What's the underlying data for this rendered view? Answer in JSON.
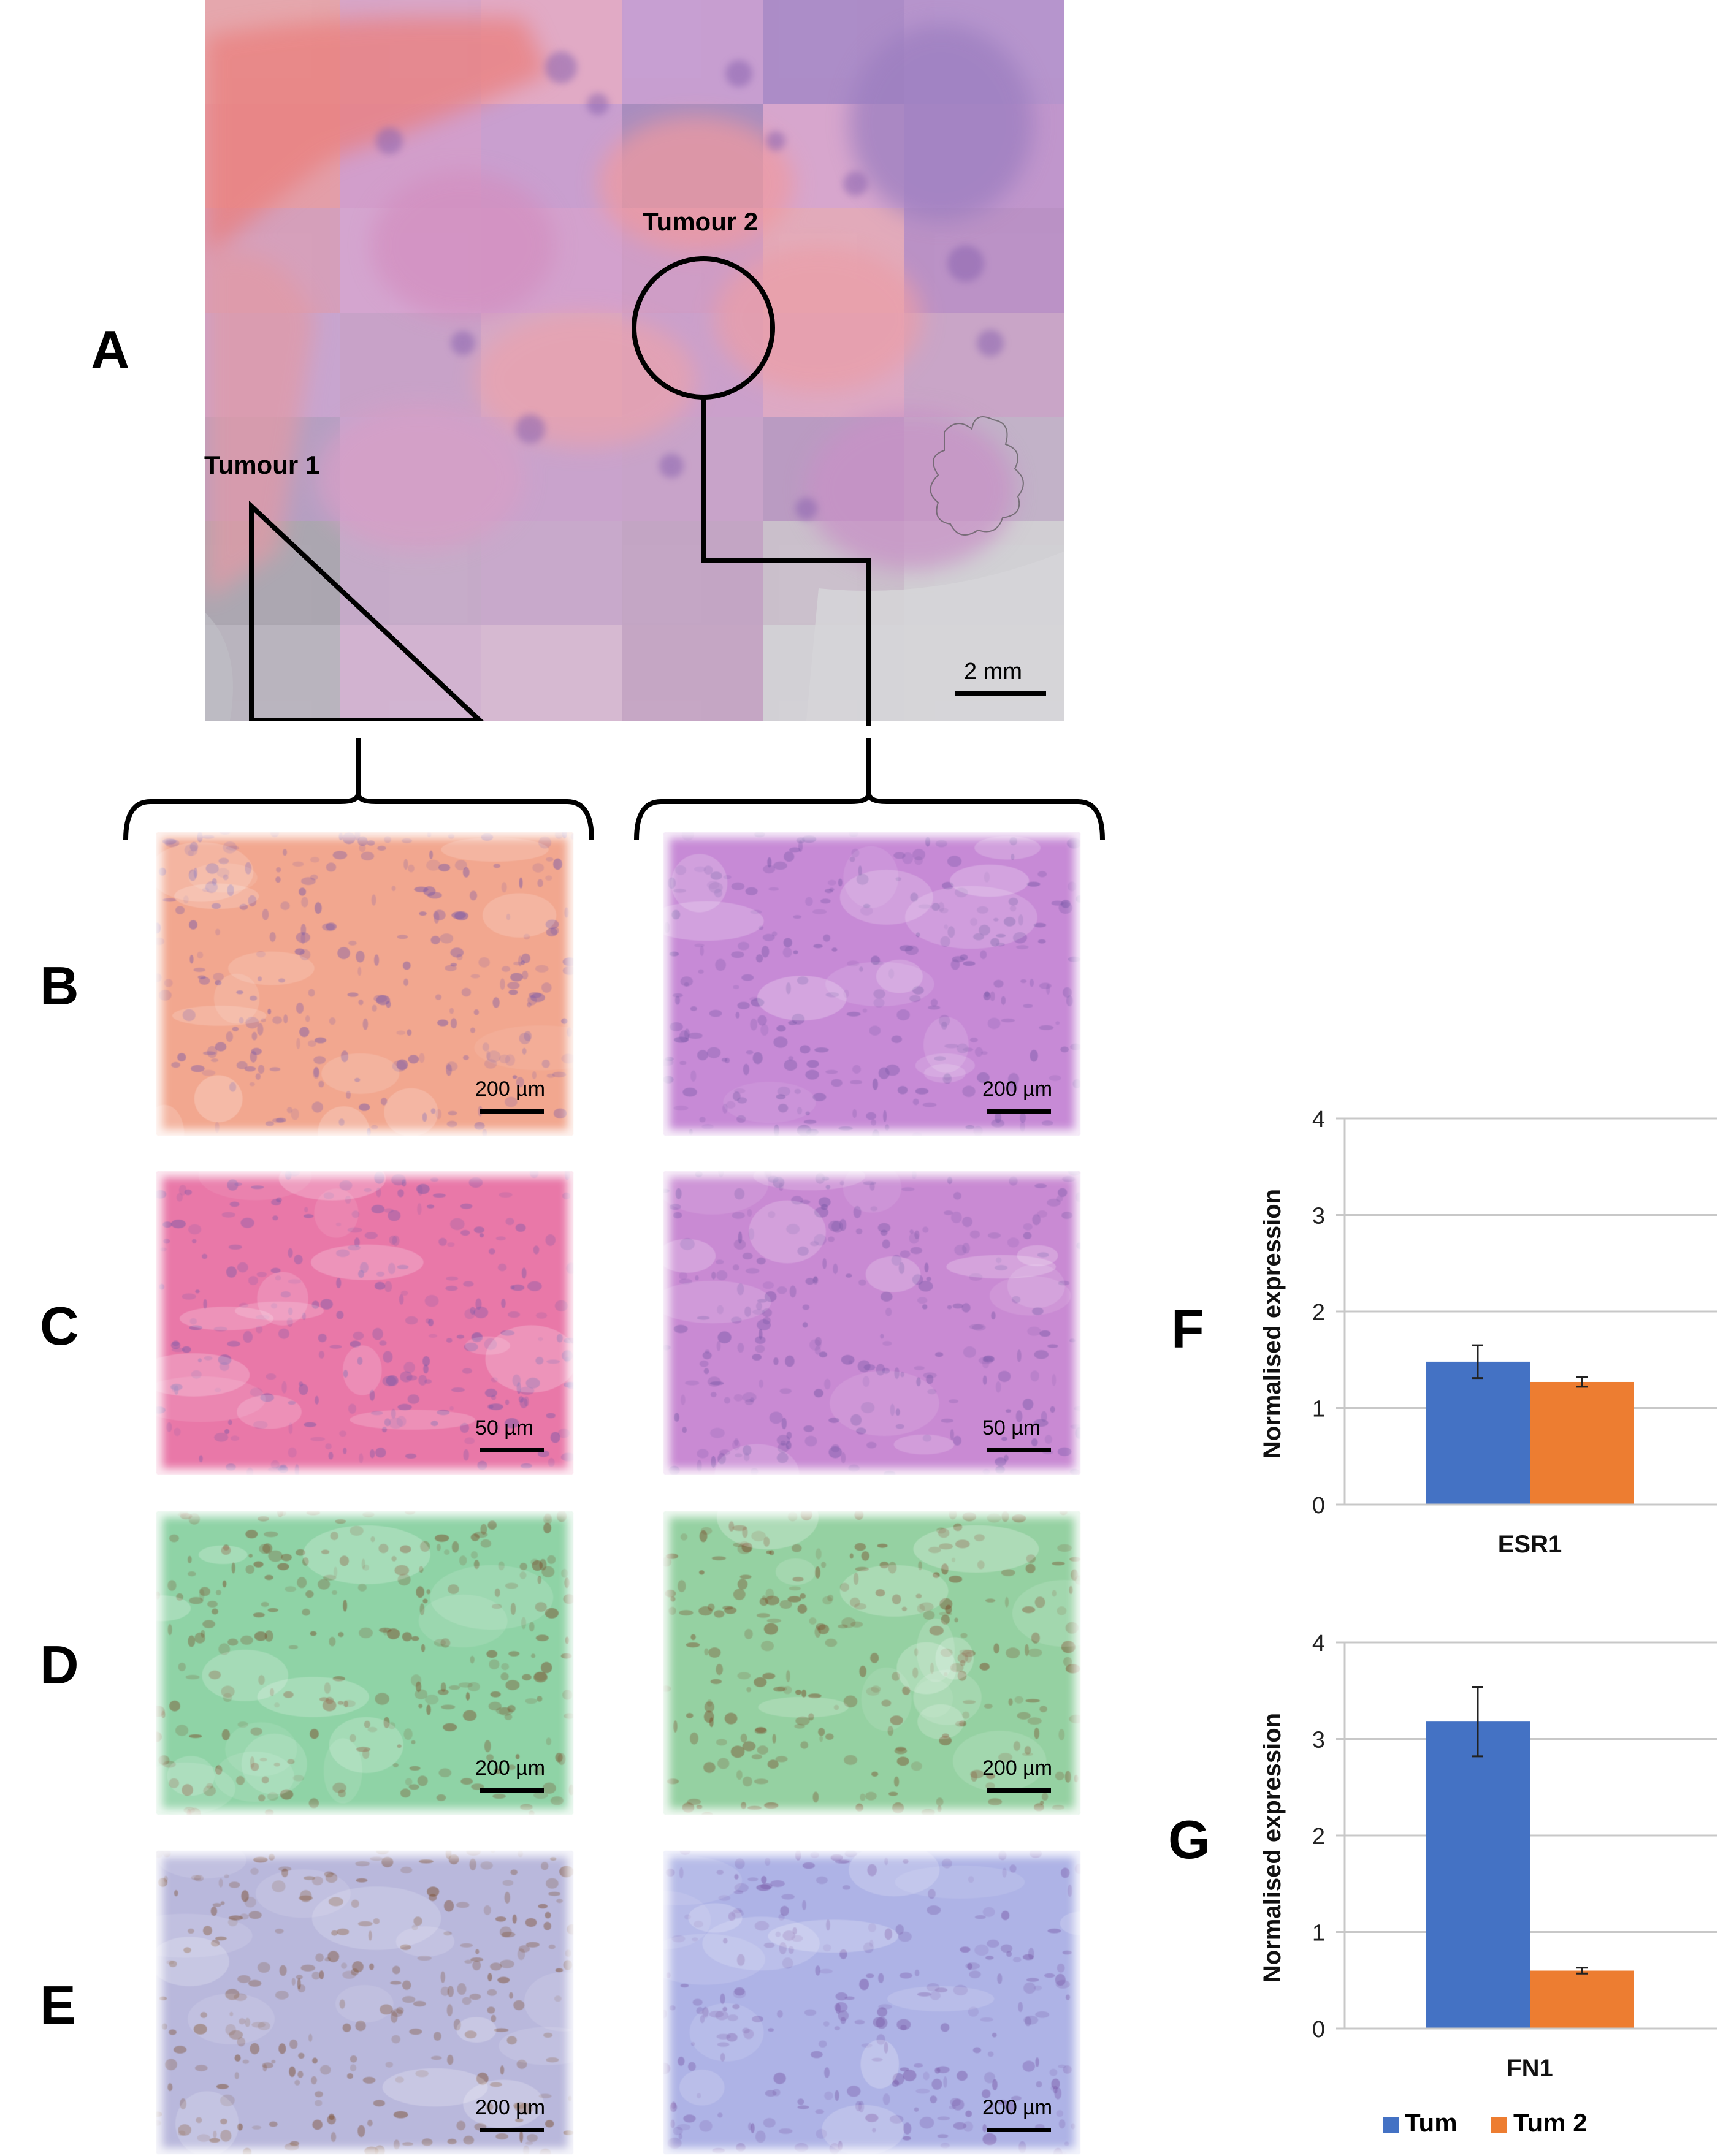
{
  "figure": {
    "panel_labels": [
      "A",
      "B",
      "C",
      "D",
      "E",
      "F",
      "G"
    ],
    "panel_a": {
      "tumour1_label": "Tumour 1",
      "tumour2_label": "Tumour 2",
      "scale_label": "2 mm"
    },
    "rows": [
      {
        "letter": "B",
        "left_scale": "200 µm",
        "right_scale": "200 µm",
        "left_color": "#f2a78f",
        "right_color": "#c78ad6"
      },
      {
        "letter": "C",
        "left_scale": "50 µm",
        "right_scale": "50 µm",
        "left_color": "#e978a8",
        "right_color": "#c98ad3"
      },
      {
        "letter": "D",
        "left_scale": "200 µm",
        "right_scale": "200 µm",
        "left_color": "#8fd3a6",
        "right_color": "#95d1a2"
      },
      {
        "letter": "E",
        "left_scale": "200 µm",
        "right_scale": "200 µm",
        "left_color": "#b9b8dc",
        "right_color": "#aeb3e6"
      }
    ],
    "legend": {
      "series1": "Tum",
      "series2": "Tum 2",
      "color1": "#4472c4",
      "color2": "#ed7d31"
    }
  },
  "chart_data": [
    {
      "type": "bar",
      "panel": "F",
      "categories": [
        "ESR1"
      ],
      "series": [
        {
          "name": "Tum",
          "values": [
            1.48
          ],
          "error": [
            0.17
          ],
          "color": "#4472c4"
        },
        {
          "name": "Tum 2",
          "values": [
            1.27
          ],
          "error": [
            0.05
          ],
          "color": "#ed7d31"
        }
      ],
      "ylabel": "Normalised expression",
      "ylim": [
        0,
        4
      ],
      "yticks": [
        "0",
        "1",
        "2",
        "3",
        "4"
      ],
      "grid": true
    },
    {
      "type": "bar",
      "panel": "G",
      "categories": [
        "FN1"
      ],
      "series": [
        {
          "name": "Tum",
          "values": [
            3.18
          ],
          "error": [
            0.36
          ],
          "color": "#4472c4"
        },
        {
          "name": "Tum 2",
          "values": [
            0.6
          ],
          "error": [
            0.03
          ],
          "color": "#ed7d31"
        }
      ],
      "ylabel": "Normalised expression",
      "ylim": [
        0,
        4
      ],
      "yticks": [
        "0",
        "1",
        "2",
        "3",
        "4"
      ],
      "grid": true
    }
  ]
}
